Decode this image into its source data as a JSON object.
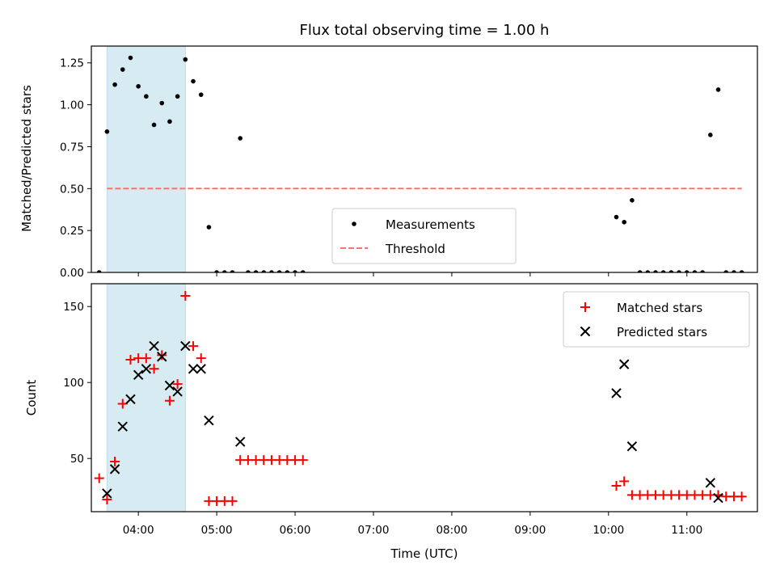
{
  "chart_data": [
    {
      "type": "scatter",
      "title": "Flux total observing time = 1.00 h",
      "xlabel": "",
      "ylabel": "Matched/Predicted stars",
      "xlim": [
        "03:24",
        "11:54"
      ],
      "ylim": [
        0.0,
        1.35
      ],
      "yticks": [
        "0.00",
        "0.25",
        "0.50",
        "0.75",
        "1.00",
        "1.25"
      ],
      "shaded_span": [
        "03:36",
        "04:36"
      ],
      "legend": {
        "position": "lower-center",
        "entries": [
          "Measurements",
          "Threshold"
        ]
      },
      "series": [
        {
          "name": "Measurements",
          "marker": "dot",
          "color": "#000000",
          "points": [
            [
              "03:30",
              0.0
            ],
            [
              "03:36",
              0.84
            ],
            [
              "03:42",
              1.12
            ],
            [
              "03:48",
              1.21
            ],
            [
              "03:54",
              1.28
            ],
            [
              "04:00",
              1.11
            ],
            [
              "04:06",
              1.05
            ],
            [
              "04:12",
              0.88
            ],
            [
              "04:18",
              1.01
            ],
            [
              "04:24",
              0.9
            ],
            [
              "04:30",
              1.05
            ],
            [
              "04:36",
              1.27
            ],
            [
              "04:42",
              1.14
            ],
            [
              "04:48",
              1.06
            ],
            [
              "04:54",
              0.27
            ],
            [
              "05:00",
              0.0
            ],
            [
              "05:06",
              0.0
            ],
            [
              "05:12",
              0.0
            ],
            [
              "05:18",
              0.8
            ],
            [
              "05:24",
              0.0
            ],
            [
              "05:30",
              0.0
            ],
            [
              "05:36",
              0.0
            ],
            [
              "05:42",
              0.0
            ],
            [
              "05:48",
              0.0
            ],
            [
              "05:54",
              0.0
            ],
            [
              "06:00",
              0.0
            ],
            [
              "06:06",
              0.0
            ],
            [
              "10:06",
              0.33
            ],
            [
              "10:12",
              0.3
            ],
            [
              "10:18",
              0.43
            ],
            [
              "10:24",
              0.0
            ],
            [
              "10:30",
              0.0
            ],
            [
              "10:36",
              0.0
            ],
            [
              "10:42",
              0.0
            ],
            [
              "10:48",
              0.0
            ],
            [
              "10:54",
              0.0
            ],
            [
              "11:00",
              0.0
            ],
            [
              "11:06",
              0.0
            ],
            [
              "11:12",
              0.0
            ],
            [
              "11:18",
              0.82
            ],
            [
              "11:24",
              1.09
            ],
            [
              "11:30",
              0.0
            ],
            [
              "11:36",
              0.0
            ],
            [
              "11:42",
              0.0
            ]
          ]
        },
        {
          "name": "Threshold",
          "type": "line",
          "style": "dashed",
          "color": "#ff7070",
          "points": [
            [
              "03:36",
              0.5
            ],
            [
              "11:42",
              0.5
            ]
          ]
        }
      ]
    },
    {
      "type": "scatter",
      "xlabel": "Time (UTC)",
      "ylabel": "Count",
      "xlim": [
        "03:24",
        "11:54"
      ],
      "ylim": [
        15,
        165
      ],
      "xticks": [
        "04:00",
        "05:00",
        "06:00",
        "07:00",
        "08:00",
        "09:00",
        "10:00",
        "11:00"
      ],
      "yticks": [
        "50",
        "100",
        "150"
      ],
      "shaded_span": [
        "03:36",
        "04:36"
      ],
      "legend": {
        "position": "top-right",
        "entries": [
          "Matched stars",
          "Predicted stars"
        ]
      },
      "series": [
        {
          "name": "Matched stars",
          "marker": "plus",
          "color": "#ff0000",
          "points": [
            [
              "03:30",
              37
            ],
            [
              "03:36",
              23
            ],
            [
              "03:42",
              48
            ],
            [
              "03:48",
              86
            ],
            [
              "03:54",
              115
            ],
            [
              "04:00",
              116
            ],
            [
              "04:06",
              116
            ],
            [
              "04:12",
              109
            ],
            [
              "04:18",
              118
            ],
            [
              "04:24",
              88
            ],
            [
              "04:30",
              99
            ],
            [
              "04:36",
              157
            ],
            [
              "04:42",
              124
            ],
            [
              "04:48",
              116
            ],
            [
              "04:54",
              22
            ],
            [
              "05:00",
              22
            ],
            [
              "05:06",
              22
            ],
            [
              "05:12",
              22
            ],
            [
              "05:18",
              49
            ],
            [
              "05:24",
              49
            ],
            [
              "05:30",
              49
            ],
            [
              "05:36",
              49
            ],
            [
              "05:42",
              49
            ],
            [
              "05:48",
              49
            ],
            [
              "05:54",
              49
            ],
            [
              "06:00",
              49
            ],
            [
              "06:06",
              49
            ],
            [
              "10:06",
              32
            ],
            [
              "10:12",
              35
            ],
            [
              "10:18",
              26
            ],
            [
              "10:24",
              26
            ],
            [
              "10:30",
              26
            ],
            [
              "10:36",
              26
            ],
            [
              "10:42",
              26
            ],
            [
              "10:48",
              26
            ],
            [
              "10:54",
              26
            ],
            [
              "11:00",
              26
            ],
            [
              "11:06",
              26
            ],
            [
              "11:12",
              26
            ],
            [
              "11:18",
              26
            ],
            [
              "11:24",
              26
            ],
            [
              "11:30",
              25
            ],
            [
              "11:36",
              25
            ],
            [
              "11:42",
              25
            ]
          ]
        },
        {
          "name": "Predicted stars",
          "marker": "x",
          "color": "#000000",
          "points": [
            [
              "03:36",
              27
            ],
            [
              "03:42",
              43
            ],
            [
              "03:48",
              71
            ],
            [
              "03:54",
              89
            ],
            [
              "04:00",
              105
            ],
            [
              "04:06",
              109
            ],
            [
              "04:12",
              124
            ],
            [
              "04:18",
              117
            ],
            [
              "04:24",
              98
            ],
            [
              "04:30",
              94
            ],
            [
              "04:36",
              124
            ],
            [
              "04:42",
              109
            ],
            [
              "04:48",
              109
            ],
            [
              "04:54",
              75
            ],
            [
              "05:18",
              61
            ],
            [
              "10:06",
              93
            ],
            [
              "10:12",
              112
            ],
            [
              "10:18",
              58
            ],
            [
              "11:18",
              34
            ],
            [
              "11:24",
              24
            ]
          ]
        }
      ]
    }
  ]
}
